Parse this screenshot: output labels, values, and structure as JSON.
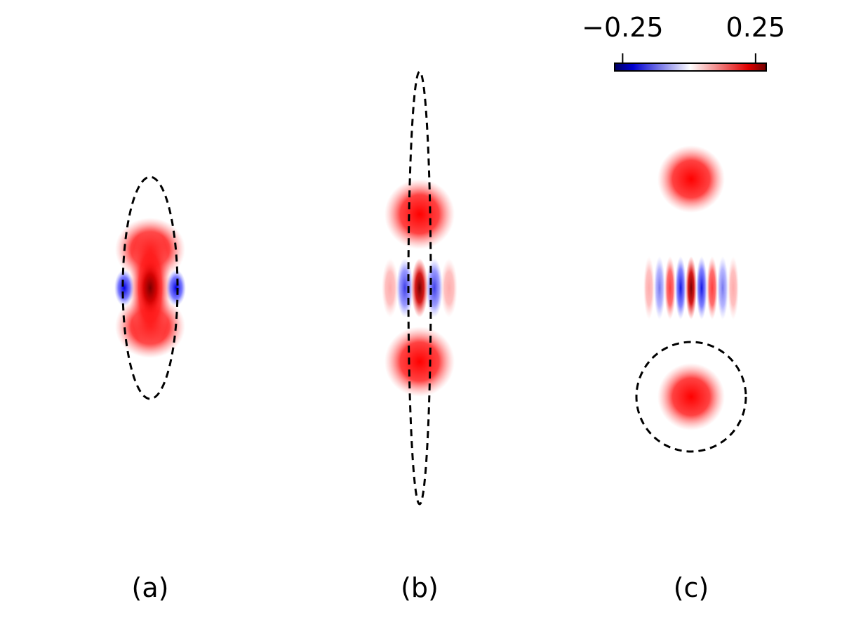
{
  "chart_data": {
    "type": "image",
    "panels": [
      {
        "label": "(a)"
      },
      {
        "label": "(b)"
      },
      {
        "label": "(c)"
      }
    ],
    "colorbar": {
      "clim": [
        -0.28,
        0.29
      ],
      "ticks": [
        {
          "value": -0.25,
          "label": "−0.25"
        },
        {
          "value": 0.25,
          "label": "0.25"
        }
      ]
    }
  }
}
